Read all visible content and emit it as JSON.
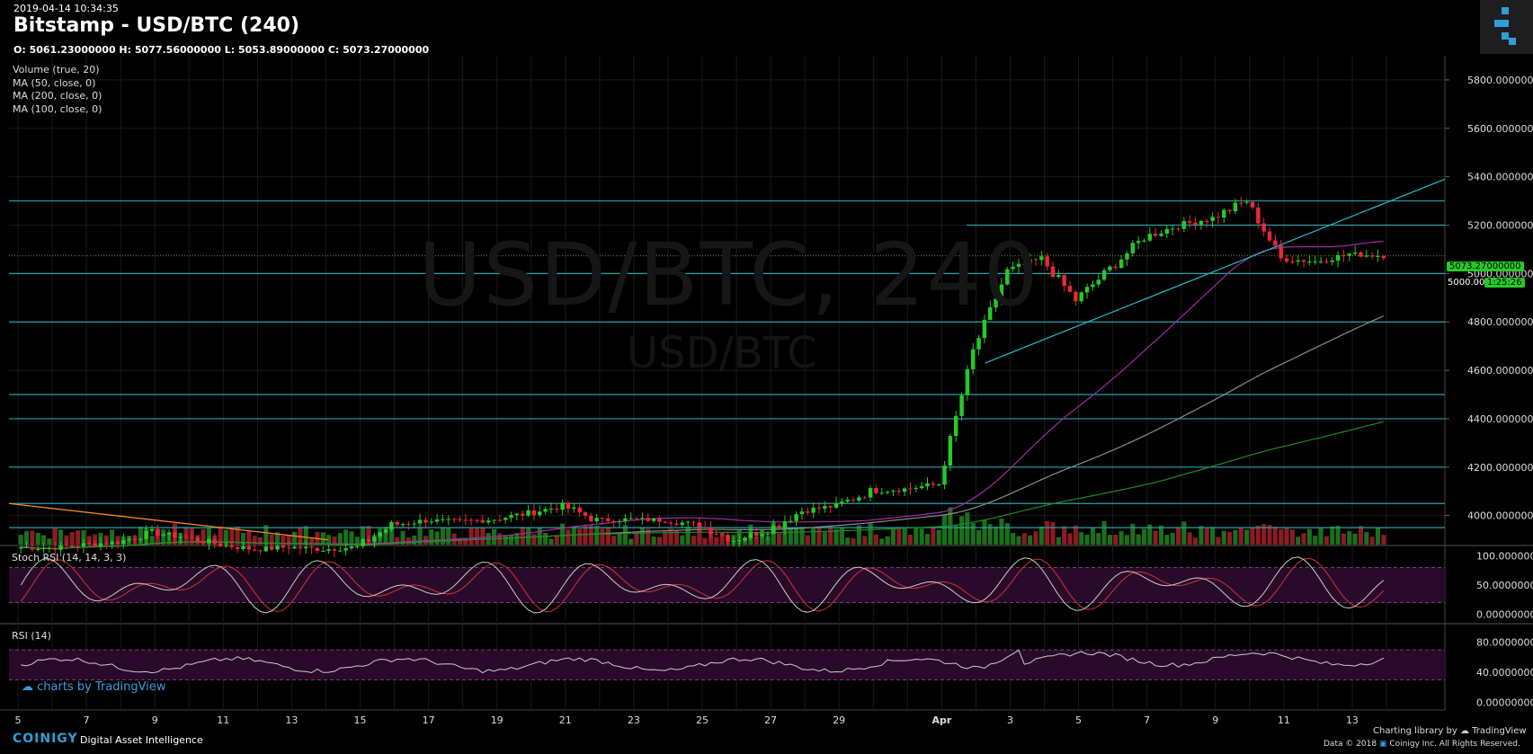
{
  "header": {
    "timestamp": "2019-04-14 10:34:35",
    "title": "Bitstamp - USD/BTC (240)",
    "ohlc": "O: 5061.23000000 H: 5077.56000000 L: 5053.89000000 C: 5073.27000000"
  },
  "indicators": [
    "Volume (true, 20)",
    "MA (50, close, 0)",
    "MA (200, close, 0)",
    "MA (100, close, 0)"
  ],
  "watermark": {
    "big": "USD/BTC, 240",
    "small": "USD/BTC"
  },
  "panes": {
    "stoch": "Stoch RSI (14, 14, 3, 3)",
    "rsi": "RSI (14)"
  },
  "price_labels": {
    "last": "5073.27000000",
    "left_val": "5000.00",
    "countdown": "1:25:26"
  },
  "branding": {
    "tradingview": "charts by TradingView",
    "coinigy": "COINIGY",
    "coinigy_sub": "Digital Asset Intelligence",
    "charting_library": "Charting library by",
    "tv_small": "TradingView",
    "copyright": "Data © 2018",
    "copyright2": "Coinigy Inc. All Rights Reserved."
  },
  "colors": {
    "background": "#000000",
    "up": "#27c927",
    "down": "#e8283a",
    "hline": "#27a0a8",
    "ma50": "#a32aa6",
    "ma100": "#8a8a8a",
    "ma200": "#1f8a1f",
    "orange_trend": "#f08c1e",
    "stoch_k": "#cccccc",
    "stoch_d": "#d33040",
    "rsi_band": "#2a0a2a"
  },
  "chart_data": [
    {
      "type": "candlestick",
      "title": "Bitstamp - USD/BTC (240)",
      "y_axis_ticks": [
        5800,
        5600,
        5400,
        5200,
        5000,
        4800,
        4600,
        4400,
        4200,
        4000
      ],
      "ylim": [
        3880,
        5900
      ],
      "x_axis_ticks": [
        "5",
        "7",
        "9",
        "11",
        "13",
        "15",
        "17",
        "19",
        "21",
        "23",
        "25",
        "27",
        "29",
        "Apr",
        "3",
        "5",
        "7",
        "9",
        "11",
        "13"
      ],
      "horizontal_levels": [
        5300,
        5200,
        5000,
        4800,
        4500,
        4400,
        4200,
        4050,
        3950
      ],
      "last_price": 5073.27,
      "daily_closes": [
        [
          "Mar 5",
          3870
        ],
        [
          "Mar 6",
          3865
        ],
        [
          "Mar 7",
          3880
        ],
        [
          "Mar 8",
          3890
        ],
        [
          "Mar 9",
          3930
        ],
        [
          "Mar 10",
          3910
        ],
        [
          "Mar 11",
          3880
        ],
        [
          "Mar 12",
          3860
        ],
        [
          "Mar 13",
          3870
        ],
        [
          "Mar 14",
          3860
        ],
        [
          "Mar 15",
          3870
        ],
        [
          "Mar 16",
          3960
        ],
        [
          "Mar 17",
          3980
        ],
        [
          "Mar 18",
          3975
        ],
        [
          "Mar 19",
          3985
        ],
        [
          "Mar 20",
          4010
        ],
        [
          "Mar 21",
          4040
        ],
        [
          "Mar 22",
          3980
        ],
        [
          "Mar 23",
          3985
        ],
        [
          "Mar 24",
          3980
        ],
        [
          "Mar 25",
          3960
        ],
        [
          "Mar 26",
          3900
        ],
        [
          "Mar 27",
          3940
        ],
        [
          "Mar 28",
          4020
        ],
        [
          "Mar 29",
          4040
        ],
        [
          "Mar 30",
          4100
        ],
        [
          "Mar 31",
          4110
        ],
        [
          "Apr 1",
          4130
        ],
        [
          "Apr 2",
          4680
        ],
        [
          "Apr 3",
          5010
        ],
        [
          "Apr 4",
          5060
        ],
        [
          "Apr 5",
          4890
        ],
        [
          "Apr 6",
          5020
        ],
        [
          "Apr 7",
          5150
        ],
        [
          "Apr 8",
          5200
        ],
        [
          "Apr 9",
          5230
        ],
        [
          "Apr 10",
          5300
        ],
        [
          "Apr 11",
          5060
        ],
        [
          "Apr 12",
          5050
        ],
        [
          "Apr 13",
          5080
        ],
        [
          "Apr 14",
          5073
        ]
      ],
      "ma_end_values": {
        "MA50": 5140,
        "MA100": 4820,
        "MA200": 4390
      }
    },
    {
      "type": "line",
      "title": "Stoch RSI (14, 14, 3, 3)",
      "y_axis_ticks": [
        100,
        50,
        0
      ],
      "ylim": [
        -10,
        110
      ],
      "bands": [
        20,
        80
      ]
    },
    {
      "type": "line",
      "title": "RSI (14)",
      "y_axis_ticks": [
        80,
        40,
        0
      ],
      "ylim": [
        -10,
        100
      ],
      "bands": [
        30,
        70
      ]
    }
  ]
}
